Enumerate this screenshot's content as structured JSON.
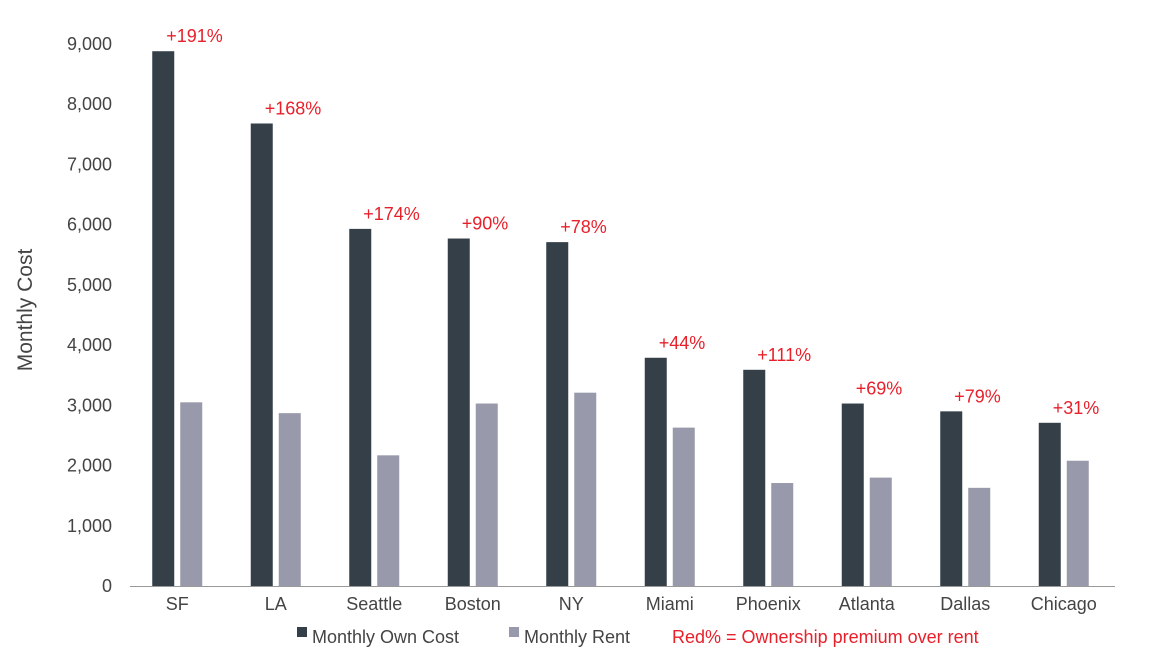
{
  "chart_data": {
    "type": "bar",
    "title": "",
    "xlabel": "",
    "ylabel": "Monthly Cost",
    "ylim": [
      0,
      9000
    ],
    "yticks": [
      0,
      1000,
      2000,
      3000,
      4000,
      5000,
      6000,
      7000,
      8000,
      9000
    ],
    "ytick_labels": [
      "0",
      "1,000",
      "2,000",
      "3,000",
      "4,000",
      "5,000",
      "6,000",
      "7,000",
      "8,000",
      "9,000"
    ],
    "grid": false,
    "legend_position": "bottom",
    "categories": [
      "SF",
      "LA",
      "Seattle",
      "Boston",
      "NY",
      "Miami",
      "Phoenix",
      "Atlanta",
      "Dallas",
      "Chicago"
    ],
    "series": [
      {
        "name": "Monthly Own Cost",
        "color": "#343f48",
        "values": [
          8880,
          7680,
          5930,
          5770,
          5710,
          3790,
          3590,
          3030,
          2900,
          2710
        ]
      },
      {
        "name": "Monthly Rent",
        "color": "#9899aa",
        "values": [
          3050,
          2870,
          2170,
          3030,
          3210,
          2630,
          1710,
          1800,
          1630,
          2080
        ]
      }
    ],
    "premium_labels": [
      "+191%",
      "+168%",
      "+174%",
      "+90%",
      "+78%",
      "+44%",
      "+111%",
      "+69%",
      "+79%",
      "+31%"
    ],
    "annotation_color": "#e8202a",
    "legend_note": "Red% = Ownership premium over rent"
  }
}
